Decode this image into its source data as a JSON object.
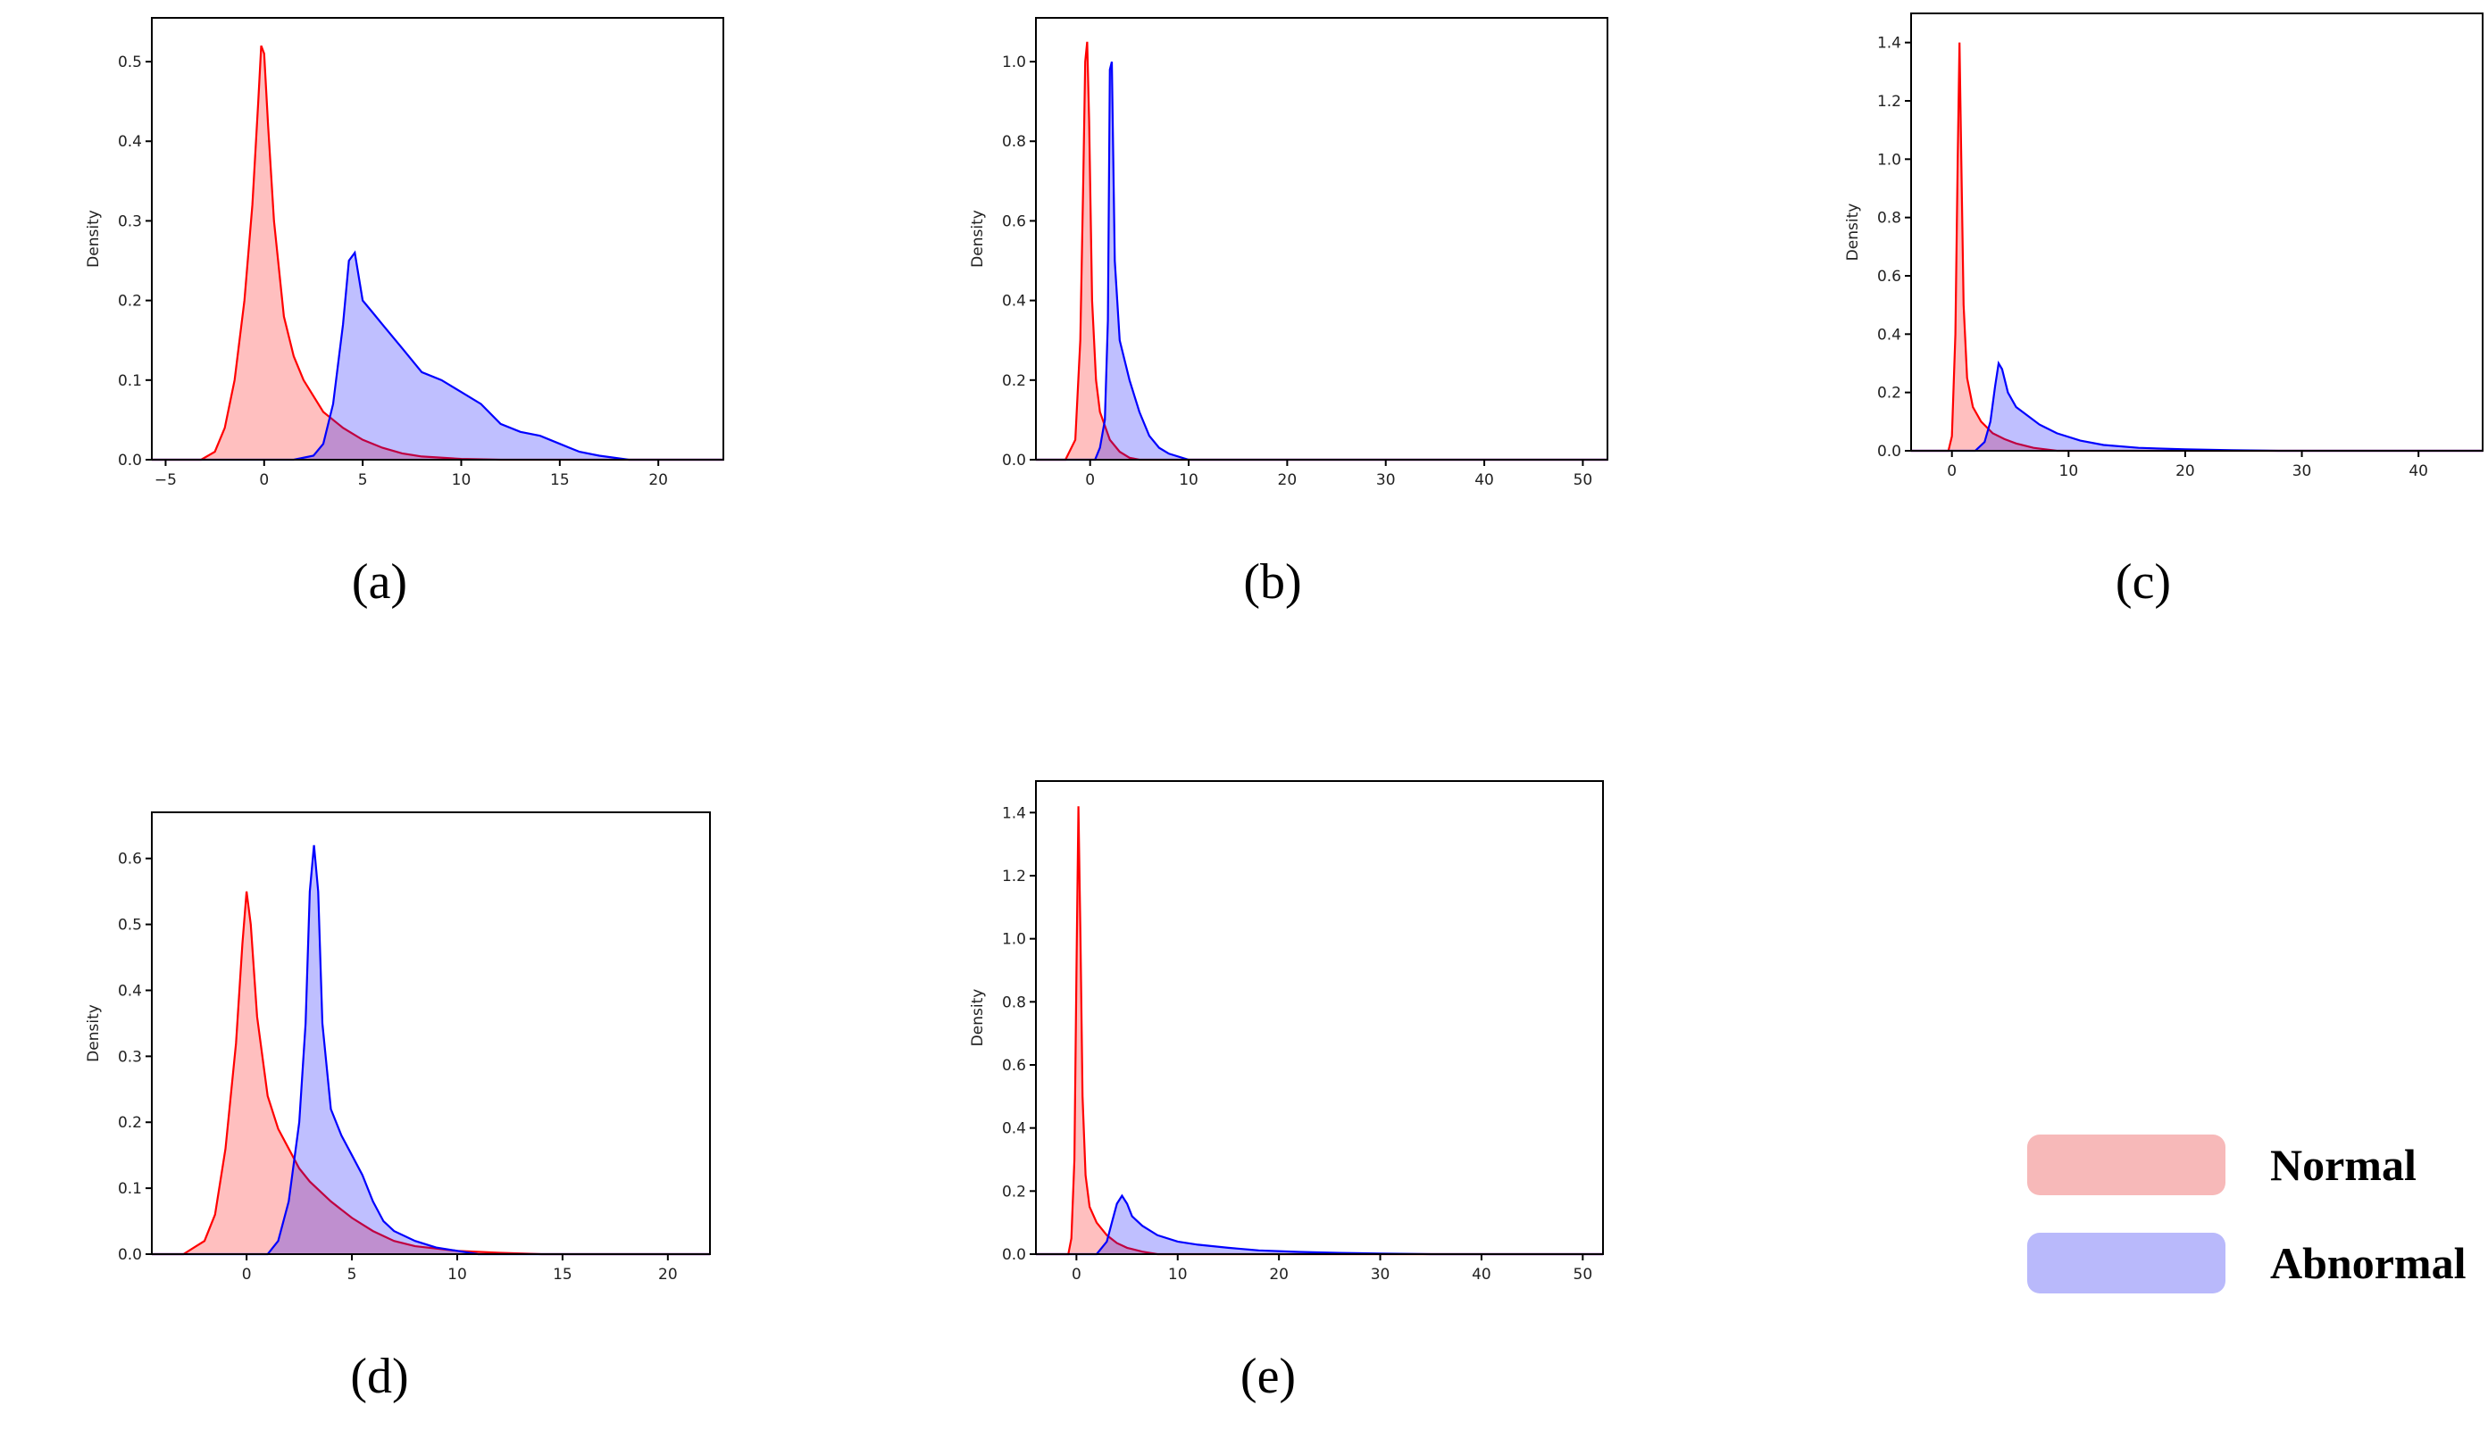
{
  "legend": {
    "normal": {
      "label": "Normal",
      "color": "#f7b9b9"
    },
    "abnormal": {
      "label": "Abnormal",
      "color": "#b9b9fb"
    }
  },
  "series_style": {
    "Normal": {
      "stroke": "#ff0000",
      "fill": "rgba(255,0,0,0.25)"
    },
    "Abnormal": {
      "stroke": "#0000ff",
      "fill": "rgba(0,0,255,0.25)"
    }
  },
  "chart_data": [
    {
      "type": "area",
      "caption": "(a)",
      "ylabel": "Density",
      "xlim": [
        -5.7,
        23.3
      ],
      "ylim": [
        0,
        0.555
      ],
      "xticks": [
        -5,
        0,
        5,
        10,
        15,
        20
      ],
      "xtick_labels": [
        "−5",
        "0",
        "5",
        "10",
        "15",
        "20"
      ],
      "yticks": [
        0,
        0.1,
        0.2,
        0.3,
        0.4,
        0.5
      ],
      "ytick_labels": [
        "0.0",
        "0.1",
        "0.2",
        "0.3",
        "0.4",
        "0.5"
      ],
      "series": [
        {
          "name": "Normal",
          "x": [
            -5.7,
            -3.2,
            -2.5,
            -2.0,
            -1.5,
            -1.0,
            -0.6,
            -0.3,
            -0.15,
            0,
            0.2,
            0.5,
            1.0,
            1.5,
            2.0,
            3.0,
            4.0,
            5.0,
            6.0,
            7.0,
            8.0,
            10.0,
            12.0,
            23.3
          ],
          "y": [
            0,
            0,
            0.01,
            0.04,
            0.1,
            0.2,
            0.32,
            0.45,
            0.52,
            0.51,
            0.42,
            0.3,
            0.18,
            0.13,
            0.1,
            0.06,
            0.04,
            0.025,
            0.015,
            0.008,
            0.004,
            0.001,
            0,
            0
          ]
        },
        {
          "name": "Abnormal",
          "x": [
            -5.7,
            1.5,
            2.5,
            3.0,
            3.5,
            4.0,
            4.3,
            4.6,
            5.0,
            5.5,
            6.0,
            7.0,
            8.0,
            9.0,
            10.0,
            11.0,
            12.0,
            13.0,
            14.0,
            15.0,
            16.0,
            17.0,
            18.5,
            23.3
          ],
          "y": [
            0,
            0,
            0.005,
            0.02,
            0.07,
            0.17,
            0.25,
            0.26,
            0.2,
            0.185,
            0.17,
            0.14,
            0.11,
            0.1,
            0.085,
            0.07,
            0.045,
            0.035,
            0.03,
            0.02,
            0.01,
            0.005,
            0,
            0
          ]
        }
      ]
    },
    {
      "type": "area",
      "caption": "(b)",
      "ylabel": "Density",
      "xlim": [
        -5.5,
        52.5
      ],
      "ylim": [
        0,
        1.11
      ],
      "xticks": [
        0,
        10,
        20,
        30,
        40,
        50
      ],
      "xtick_labels": [
        "0",
        "10",
        "20",
        "30",
        "40",
        "50"
      ],
      "yticks": [
        0,
        0.2,
        0.4,
        0.6,
        0.8,
        1.0
      ],
      "ytick_labels": [
        "0.0",
        "0.2",
        "0.4",
        "0.6",
        "0.8",
        "1.0"
      ],
      "series": [
        {
          "name": "Normal",
          "x": [
            -5.5,
            -2.5,
            -1.5,
            -1.0,
            -0.7,
            -0.5,
            -0.3,
            -0.1,
            0.2,
            0.6,
            1.0,
            2.0,
            3.0,
            4.0,
            5.0,
            52.5
          ],
          "y": [
            0,
            0,
            0.05,
            0.3,
            0.7,
            1.0,
            1.05,
            0.85,
            0.4,
            0.2,
            0.12,
            0.05,
            0.02,
            0.005,
            0,
            0
          ]
        },
        {
          "name": "Abnormal",
          "x": [
            -5.5,
            0.5,
            1.0,
            1.5,
            1.8,
            2.0,
            2.2,
            2.5,
            3.0,
            3.5,
            4.0,
            5.0,
            6.0,
            7.0,
            8.0,
            10.0,
            52.5
          ],
          "y": [
            0,
            0,
            0.03,
            0.1,
            0.35,
            0.98,
            1.0,
            0.5,
            0.3,
            0.25,
            0.2,
            0.12,
            0.06,
            0.03,
            0.015,
            0,
            0
          ]
        }
      ]
    },
    {
      "type": "area",
      "caption": "(c)",
      "ylabel": "Density",
      "xlim": [
        -3.5,
        45.5
      ],
      "ylim": [
        0,
        1.5
      ],
      "xticks": [
        0,
        10,
        20,
        30,
        40
      ],
      "xtick_labels": [
        "0",
        "10",
        "20",
        "30",
        "40"
      ],
      "yticks": [
        0,
        0.2,
        0.4,
        0.6,
        0.8,
        1.0,
        1.2,
        1.4
      ],
      "ytick_labels": [
        "0.0",
        "0.2",
        "0.4",
        "0.6",
        "0.8",
        "1.0",
        "1.2",
        "1.4"
      ],
      "series": [
        {
          "name": "Normal",
          "x": [
            -3.5,
            -0.3,
            0,
            0.3,
            0.5,
            0.65,
            0.8,
            1.0,
            1.3,
            1.8,
            2.5,
            3.5,
            4.5,
            5.5,
            7.0,
            9.0,
            45.5
          ],
          "y": [
            0,
            0,
            0.05,
            0.4,
            1.0,
            1.4,
            1.0,
            0.5,
            0.25,
            0.15,
            0.1,
            0.06,
            0.04,
            0.025,
            0.01,
            0,
            0
          ]
        },
        {
          "name": "Abnormal",
          "x": [
            -3.5,
            2.0,
            2.8,
            3.3,
            3.7,
            4.0,
            4.3,
            4.8,
            5.5,
            6.5,
            7.5,
            9.0,
            11.0,
            13.0,
            16.0,
            20.0,
            24.0,
            28.0,
            45.5
          ],
          "y": [
            0,
            0,
            0.03,
            0.1,
            0.22,
            0.3,
            0.28,
            0.2,
            0.15,
            0.12,
            0.09,
            0.06,
            0.035,
            0.02,
            0.01,
            0.005,
            0.002,
            0,
            0
          ]
        }
      ]
    },
    {
      "type": "area",
      "caption": "(d)",
      "ylabel": "Density",
      "xlim": [
        -4.5,
        22.0
      ],
      "ylim": [
        0,
        0.67
      ],
      "xticks": [
        0,
        5,
        10,
        15,
        20
      ],
      "xtick_labels": [
        "0",
        "5",
        "10",
        "15",
        "20"
      ],
      "yticks": [
        0,
        0.1,
        0.2,
        0.3,
        0.4,
        0.5,
        0.6
      ],
      "ytick_labels": [
        "0.0",
        "0.1",
        "0.2",
        "0.3",
        "0.4",
        "0.5",
        "0.6"
      ],
      "series": [
        {
          "name": "Normal",
          "x": [
            -4.5,
            -3.0,
            -2.0,
            -1.5,
            -1.0,
            -0.5,
            -0.2,
            0,
            0.2,
            0.5,
            1.0,
            1.5,
            2.0,
            2.5,
            3.0,
            4.0,
            5.0,
            6.0,
            7.0,
            8.0,
            10.0,
            12.0,
            14.0,
            22.0
          ],
          "y": [
            0,
            0,
            0.02,
            0.06,
            0.16,
            0.32,
            0.47,
            0.55,
            0.5,
            0.36,
            0.24,
            0.19,
            0.16,
            0.13,
            0.11,
            0.08,
            0.055,
            0.035,
            0.02,
            0.012,
            0.005,
            0.002,
            0,
            0
          ]
        },
        {
          "name": "Abnormal",
          "x": [
            -4.5,
            1.0,
            1.5,
            2.0,
            2.5,
            2.8,
            3.0,
            3.2,
            3.4,
            3.6,
            4.0,
            4.5,
            5.0,
            5.5,
            6.0,
            6.5,
            7.0,
            8.0,
            9.0,
            10.0,
            11.0,
            22.0
          ],
          "y": [
            0,
            0,
            0.02,
            0.08,
            0.2,
            0.35,
            0.55,
            0.62,
            0.55,
            0.35,
            0.22,
            0.18,
            0.15,
            0.12,
            0.08,
            0.05,
            0.035,
            0.02,
            0.01,
            0.005,
            0,
            0
          ]
        }
      ]
    },
    {
      "type": "area",
      "caption": "(e)",
      "ylabel": "Density",
      "xlim": [
        -4.0,
        52.0
      ],
      "ylim": [
        0,
        1.5
      ],
      "xticks": [
        0,
        10,
        20,
        30,
        40,
        50
      ],
      "xtick_labels": [
        "0",
        "10",
        "20",
        "30",
        "40",
        "50"
      ],
      "yticks": [
        0,
        0.2,
        0.4,
        0.6,
        0.8,
        1.0,
        1.2,
        1.4
      ],
      "ytick_labels": [
        "0.0",
        "0.2",
        "0.4",
        "0.6",
        "0.8",
        "1.0",
        "1.2",
        "1.4"
      ],
      "series": [
        {
          "name": "Normal",
          "x": [
            -4.0,
            -0.8,
            -0.5,
            -0.2,
            0,
            0.2,
            0.4,
            0.6,
            0.9,
            1.3,
            2.0,
            3.0,
            4.0,
            5.0,
            6.5,
            8.0,
            52.0
          ],
          "y": [
            0,
            0,
            0.05,
            0.3,
            0.9,
            1.42,
            1.0,
            0.5,
            0.25,
            0.15,
            0.1,
            0.06,
            0.035,
            0.02,
            0.008,
            0,
            0
          ]
        },
        {
          "name": "Abnormal",
          "x": [
            -4.0,
            2.0,
            3.0,
            3.5,
            4.0,
            4.5,
            5.0,
            5.5,
            6.5,
            8.0,
            10.0,
            12.0,
            15.0,
            18.0,
            22.0,
            26.0,
            30.0,
            35.0,
            52.0
          ],
          "y": [
            0,
            0,
            0.04,
            0.1,
            0.16,
            0.185,
            0.16,
            0.12,
            0.09,
            0.06,
            0.04,
            0.03,
            0.02,
            0.012,
            0.007,
            0.004,
            0.002,
            0,
            0
          ]
        }
      ]
    }
  ]
}
